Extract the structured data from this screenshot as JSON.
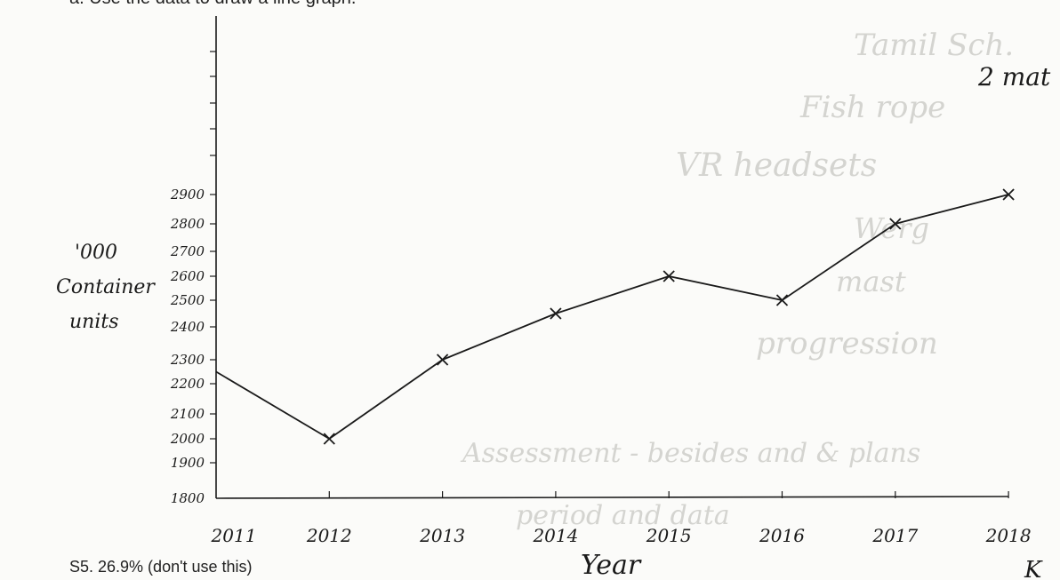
{
  "header_text": "a. Use the data to draw a line graph.",
  "footer_text": "S5. 26.9% (don't use this)",
  "margin_note": "2 mat",
  "corner_note": "K",
  "faint_notes": [
    "Tamil Sch.",
    "Fish rope",
    "VR headsets",
    "Werg",
    "mast",
    "progression",
    "Assessment - besides and & plans",
    "period and data"
  ],
  "colors": {
    "ink": "#1a1a1a",
    "paper": "#fbfbf9",
    "faint": "#d4d4d0"
  },
  "chart_data": {
    "type": "line",
    "title": "",
    "xlabel": "Year",
    "ylabel_lines": [
      "'000",
      "Container",
      "units"
    ],
    "x": [
      "2011",
      "2012",
      "2013",
      "2014",
      "2015",
      "2016",
      "2017",
      "2018"
    ],
    "series": [
      {
        "values": [
          2250,
          2000,
          2300,
          2450,
          2600,
          2500,
          2800,
          2900
        ]
      }
    ],
    "yticks": [
      1800,
      1900,
      2000,
      2100,
      2200,
      2300,
      2400,
      2500,
      2600,
      2700,
      2800,
      2900
    ],
    "ylim": [
      1800,
      2900
    ],
    "marker": "x",
    "grid": false
  }
}
